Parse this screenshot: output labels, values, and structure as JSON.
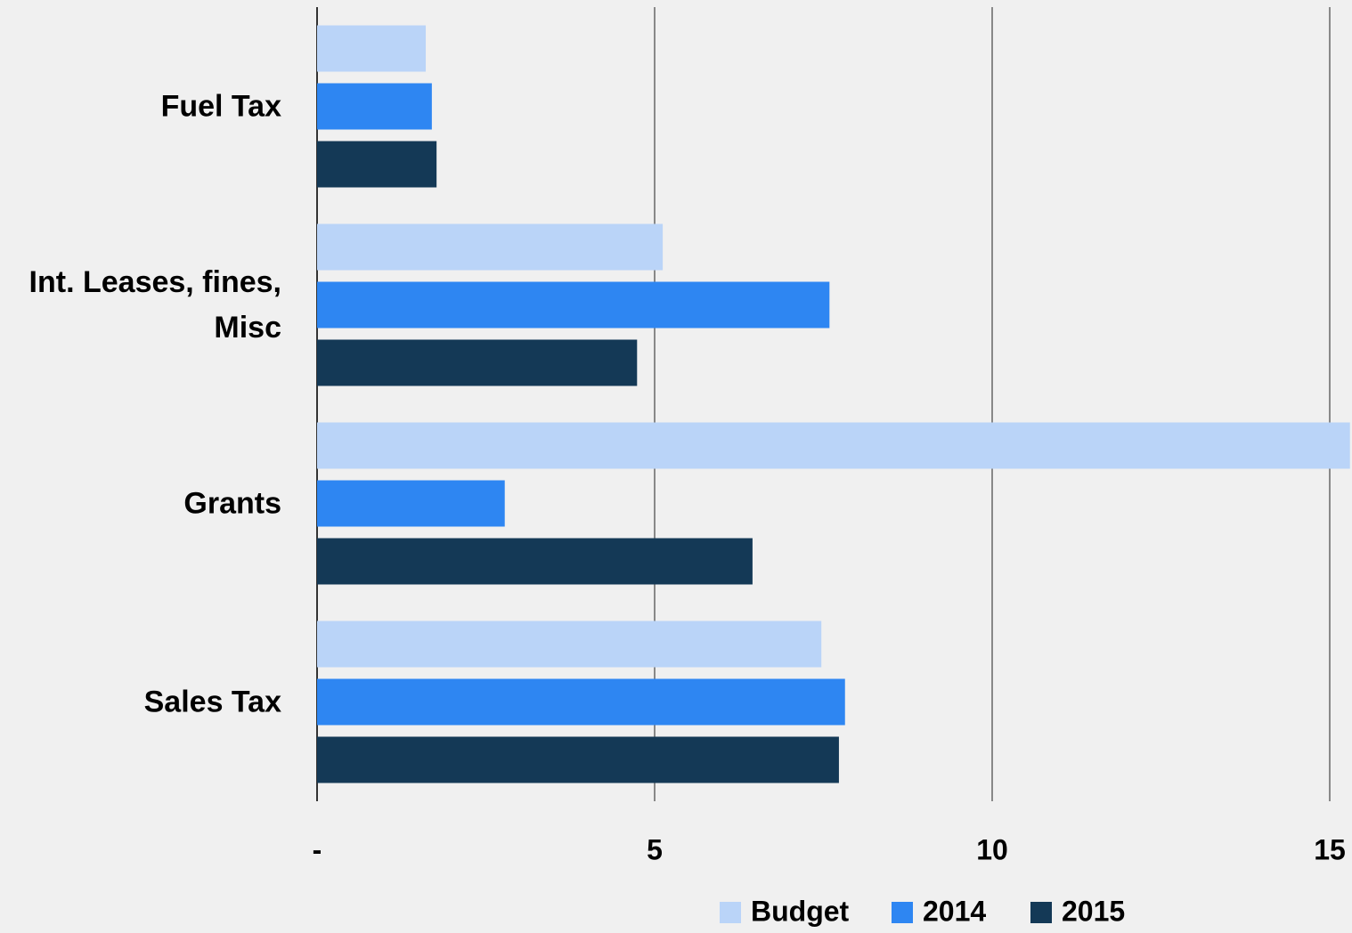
{
  "chart_data": {
    "type": "bar",
    "orientation": "horizontal",
    "categories": [
      "Fuel Tax",
      "Int. Leases, fines, Misc",
      "Grants",
      "Sales Tax"
    ],
    "series": [
      {
        "name": "Budget",
        "color": "#bad4f8",
        "values": [
          1.61,
          5.12,
          15.3,
          7.47
        ]
      },
      {
        "name": "2014",
        "color": "#2e86f2",
        "values": [
          1.7,
          7.59,
          2.78,
          7.82
        ]
      },
      {
        "name": "2015",
        "color": "#143956",
        "values": [
          1.77,
          4.74,
          6.45,
          7.73
        ]
      }
    ],
    "xlim": [
      0,
      15.33
    ],
    "xticks": [
      {
        "value": 0,
        "label": "-"
      },
      5,
      10,
      15
    ],
    "grid": true,
    "legend": "bottom"
  }
}
